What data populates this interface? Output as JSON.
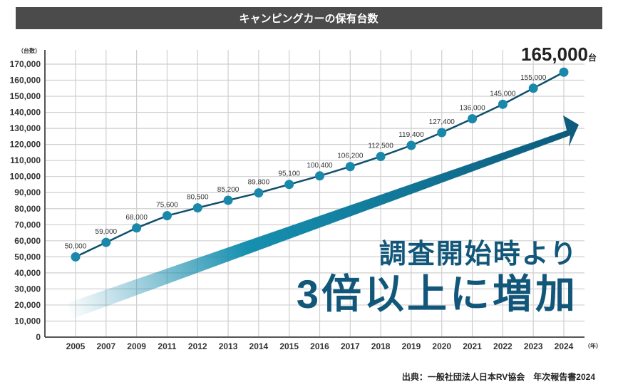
{
  "chart_data": {
    "type": "line",
    "title": "キャンピングカーの保有台数",
    "ylabel": "（台数）",
    "xunit": "（年）",
    "categories": [
      "2005",
      "2007",
      "2009",
      "2011",
      "2012",
      "2013",
      "2014",
      "2015",
      "2016",
      "2017",
      "2018",
      "2019",
      "2020",
      "2021",
      "2022",
      "2023",
      "2024"
    ],
    "values": [
      50000,
      59000,
      68000,
      75600,
      80500,
      85200,
      89800,
      95100,
      100400,
      106200,
      112500,
      119400,
      127400,
      136000,
      145000,
      155000,
      165000
    ],
    "data_labels": [
      "50,000",
      "59,000",
      "68,000",
      "75,600",
      "80,500",
      "85,200",
      "89,800",
      "95,100",
      "100,400",
      "106,200",
      "112,500",
      "119,400",
      "127,400",
      "136,000",
      "145,000",
      "155,000",
      ""
    ],
    "ylim": [
      0,
      170000
    ],
    "yticks": [
      "0",
      "10,000",
      "20,000",
      "30,000",
      "40,000",
      "50,000",
      "60,000",
      "70,000",
      "80,000",
      "90,000",
      "100,000",
      "110,000",
      "120,000",
      "130,000",
      "140,000",
      "150,000",
      "160,000",
      "170,000"
    ],
    "grid": true,
    "highlight": {
      "value": "165,000",
      "unit": "台"
    },
    "annotation": {
      "line1": "調査開始時より",
      "line2": "3倍以上に増加"
    },
    "source": "出典：一般社団法人日本RV協会　年次報告書2024",
    "colors": {
      "line": "#0f4f6d",
      "marker": "#1a88aa",
      "arrow": "#0d5a7c",
      "title_bg": "#4b4b4b",
      "annotation": "#12577a"
    }
  }
}
